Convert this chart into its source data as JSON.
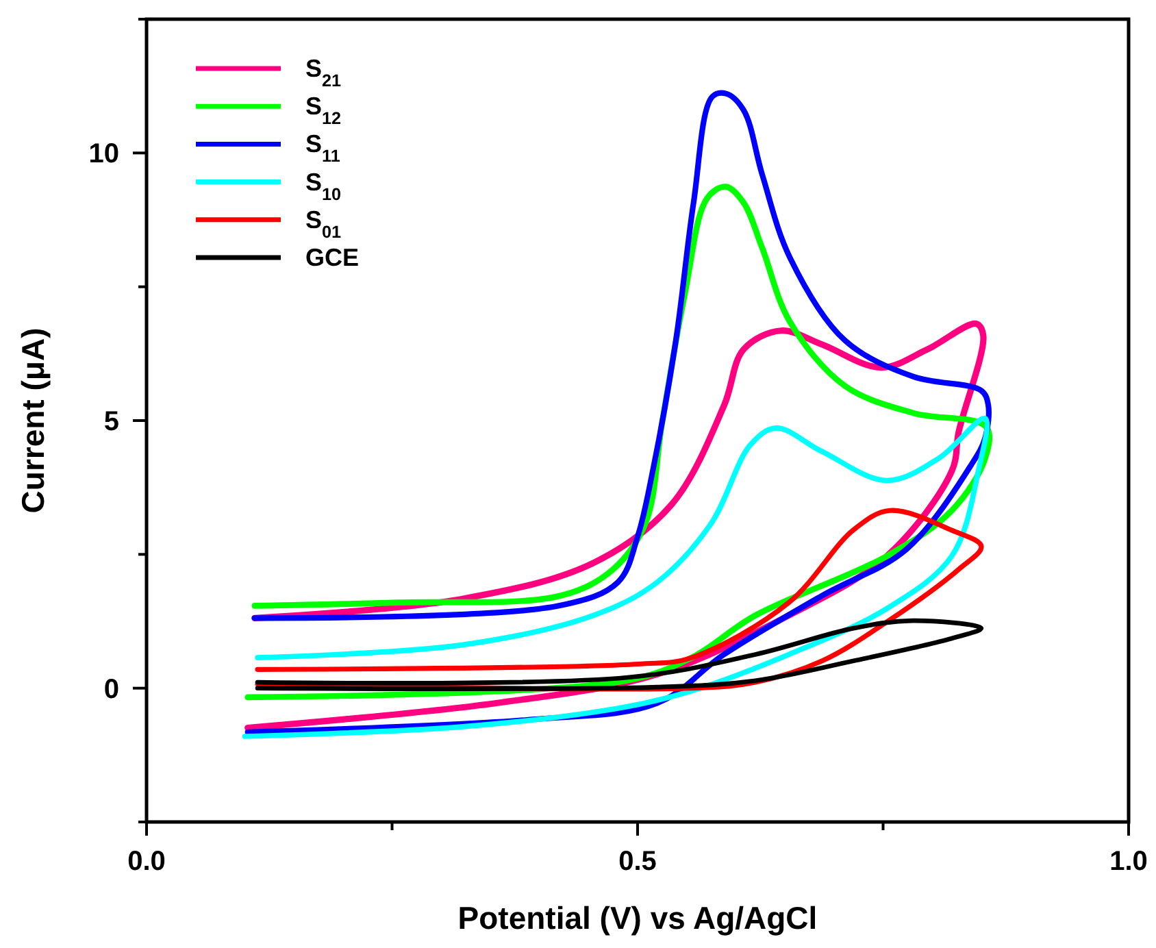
{
  "chart_data": {
    "type": "line",
    "xlabel": "Potential (V) vs Ag/AgCl",
    "ylabel": "Current (μA)",
    "xlim": [
      0,
      1
    ],
    "ylim": [
      -2.5,
      12.5
    ],
    "xticks": [
      {
        "value": 0,
        "label": "0.0"
      },
      {
        "value": 0.25,
        "label": null
      },
      {
        "value": 0.5,
        "label": "0.5"
      },
      {
        "value": 0.75,
        "label": null
      },
      {
        "value": 1,
        "label": "1.0"
      }
    ],
    "yticks": [
      {
        "value": -2.5,
        "label": null
      },
      0,
      {
        "value": 2.5,
        "label": null
      },
      5,
      {
        "value": 7.5,
        "label": null
      },
      10,
      {
        "value": 12.5,
        "label": null
      }
    ],
    "grid": false,
    "legend": "top left",
    "marker": "none",
    "line_style": "solid",
    "series": [
      {
        "name": "S$_{21}$",
        "color": "#ff0080",
        "x": [
          0.11,
          0.322,
          0.455,
          0.535,
          0.588,
          0.608,
          0.646,
          0.688,
          0.748,
          0.795,
          0.845,
          0.852,
          0.827,
          0.82,
          0.754,
          0.654,
          0.52,
          0.356,
          0.103
        ],
        "values": [
          1.31,
          1.67,
          2.34,
          3.44,
          5.28,
          6.33,
          6.68,
          6.42,
          5.99,
          6.33,
          6.81,
          6.59,
          4.79,
          4.06,
          2.47,
          1.36,
          0.26,
          -0.28,
          -0.74
        ]
      },
      {
        "name": "S$_{12}$",
        "color": "#00ff00",
        "x": [
          0.11,
          0.256,
          0.422,
          0.475,
          0.508,
          0.525,
          0.548,
          0.571,
          0.59,
          0.608,
          0.627,
          0.655,
          0.711,
          0.781,
          0.855,
          0.854,
          0.82,
          0.754,
          0.62,
          0.555,
          0.488,
          0.103
        ],
        "values": [
          1.54,
          1.6,
          1.73,
          2.22,
          3.08,
          4.96,
          7.36,
          9.16,
          9.37,
          9.07,
          8.22,
          6.85,
          5.65,
          5.14,
          4.88,
          4.3,
          3.32,
          2.47,
          1.36,
          0.57,
          0.14,
          -0.17
        ]
      },
      {
        "name": "S$_{11}$",
        "color": "#0000ff",
        "x": [
          0.11,
          0.42,
          0.48,
          0.5,
          0.516,
          0.539,
          0.557,
          0.576,
          0.59,
          0.608,
          0.627,
          0.655,
          0.711,
          0.781,
          0.85,
          0.857,
          0.854,
          0.84,
          0.774,
          0.688,
          0.588,
          0.52,
          0.389,
          0.103
        ],
        "values": [
          1.31,
          1.54,
          1.98,
          2.83,
          4.11,
          6.5,
          9.07,
          11.05,
          11.11,
          10.8,
          9.59,
          8.05,
          6.5,
          5.82,
          5.56,
          5.3,
          4.68,
          4.18,
          2.6,
          1.73,
          0.63,
          -0.28,
          -0.59,
          -0.82
        ]
      },
      {
        "name": "S$_{10}$",
        "color": "#00ffff",
        "x": [
          0.113,
          0.322,
          0.455,
          0.52,
          0.575,
          0.615,
          0.641,
          0.688,
          0.754,
          0.807,
          0.854,
          0.847,
          0.82,
          0.754,
          0.654,
          0.555,
          0.488,
          0.322,
          0.1
        ],
        "values": [
          0.57,
          0.81,
          1.36,
          1.98,
          3.08,
          4.55,
          4.86,
          4.42,
          3.88,
          4.3,
          5.04,
          4.06,
          2.47,
          1.49,
          0.63,
          -0.05,
          -0.35,
          -0.72,
          -0.9
        ]
      },
      {
        "name": "S$_{01}$",
        "color": "#ff0000",
        "x": [
          0.113,
          0.5,
          0.555,
          0.654,
          0.72,
          0.757,
          0.82,
          0.85,
          0.827,
          0.754,
          0.688,
          0.62,
          0.555,
          0.113
        ],
        "values": [
          0.35,
          0.45,
          0.57,
          1.6,
          2.96,
          3.32,
          2.95,
          2.65,
          2.22,
          1.24,
          0.51,
          0.11,
          0.0,
          0.08
        ]
      },
      {
        "name": "GCE",
        "color": "#000000",
        "x": [
          0.113,
          0.49,
          0.62,
          0.72,
          0.78,
          0.85,
          0.82,
          0.72,
          0.62,
          0.52,
          0.113
        ],
        "values": [
          0.11,
          0.2,
          0.63,
          1.12,
          1.26,
          1.12,
          0.93,
          0.51,
          0.14,
          0.02,
          0.0
        ]
      }
    ]
  }
}
